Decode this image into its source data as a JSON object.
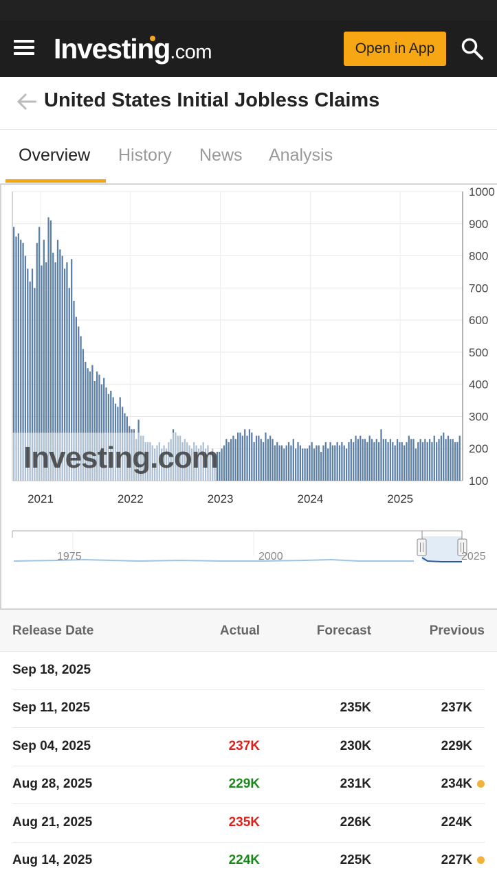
{
  "header": {
    "logo_main": "Investing",
    "logo_suffix": ".com",
    "open_app_label": "Open in App"
  },
  "page_title": "United States Initial Jobless Claims",
  "tabs": [
    {
      "label": "Overview",
      "active": true
    },
    {
      "label": "History",
      "active": false
    },
    {
      "label": "News",
      "active": false
    },
    {
      "label": "Analysis",
      "active": false
    }
  ],
  "chart_data": {
    "type": "bar",
    "unit": "K",
    "ylim": [
      100,
      1000
    ],
    "y_ticks": [
      "1000",
      "900",
      "800",
      "700",
      "600",
      "500",
      "400",
      "300",
      "200",
      "100"
    ],
    "x_ticks": [
      "2021",
      "2022",
      "2023",
      "2024",
      "2025"
    ],
    "color": "#5b7fa6",
    "watermark": "Investing.com",
    "navigator": {
      "labels": [
        "1975",
        "2000",
        "2025"
      ]
    },
    "values": [
      890,
      860,
      870,
      850,
      840,
      800,
      760,
      720,
      760,
      700,
      840,
      890,
      770,
      850,
      780,
      920,
      910,
      810,
      780,
      850,
      820,
      800,
      760,
      780,
      700,
      790,
      660,
      610,
      580,
      550,
      510,
      470,
      450,
      440,
      460,
      410,
      440,
      430,
      400,
      420,
      390,
      370,
      380,
      360,
      340,
      330,
      360,
      330,
      310,
      300,
      270,
      260,
      260,
      230,
      290,
      240,
      240,
      220,
      220,
      220,
      210,
      200,
      210,
      220,
      200,
      210,
      200,
      220,
      230,
      260,
      250,
      240,
      240,
      220,
      230,
      220,
      210,
      200,
      220,
      210,
      200,
      210,
      220,
      200,
      210,
      190,
      200,
      180,
      190,
      190,
      200,
      210,
      230,
      220,
      230,
      240,
      230,
      250,
      250,
      240,
      260,
      240,
      260,
      250,
      220,
      240,
      240,
      230,
      220,
      250,
      230,
      240,
      230,
      210,
      220,
      210,
      210,
      200,
      210,
      220,
      210,
      230,
      200,
      220,
      210,
      200,
      200,
      200,
      210,
      220,
      200,
      210,
      210,
      190,
      210,
      220,
      200,
      220,
      210,
      210,
      220,
      210,
      220,
      210,
      200,
      220,
      230,
      220,
      240,
      230,
      240,
      230,
      230,
      220,
      240,
      230,
      220,
      230,
      220,
      260,
      230,
      230,
      220,
      230,
      220,
      210,
      230,
      220,
      220,
      210,
      220,
      240,
      230,
      230,
      200,
      220,
      230,
      220,
      230,
      220,
      230,
      220,
      240,
      220,
      230,
      240,
      250,
      230,
      240,
      230,
      230,
      220,
      220,
      240
    ]
  },
  "table": {
    "headers": {
      "date": "Release Date",
      "actual": "Actual",
      "forecast": "Forecast",
      "previous": "Previous"
    },
    "rows": [
      {
        "date": "Sep 18, 2025",
        "actual": "",
        "actual_status": "",
        "forecast": "",
        "previous": "",
        "revised": false
      },
      {
        "date": "Sep 11, 2025",
        "actual": "",
        "actual_status": "",
        "forecast": "235K",
        "previous": "237K",
        "revised": false
      },
      {
        "date": "Sep 04, 2025",
        "actual": "237K",
        "actual_status": "neg",
        "forecast": "230K",
        "previous": "229K",
        "revised": false
      },
      {
        "date": "Aug 28, 2025",
        "actual": "229K",
        "actual_status": "pos",
        "forecast": "231K",
        "previous": "234K",
        "revised": true
      },
      {
        "date": "Aug 21, 2025",
        "actual": "235K",
        "actual_status": "neg",
        "forecast": "226K",
        "previous": "224K",
        "revised": false
      },
      {
        "date": "Aug 14, 2025",
        "actual": "224K",
        "actual_status": "pos",
        "forecast": "225K",
        "previous": "227K",
        "revised": true
      }
    ]
  },
  "colors": {
    "accent": "#f7a614",
    "topbar": "#1e1e1e",
    "negative": "#e0201b",
    "positive": "#1a8a1a",
    "revised_dot": "#f0b23a"
  }
}
